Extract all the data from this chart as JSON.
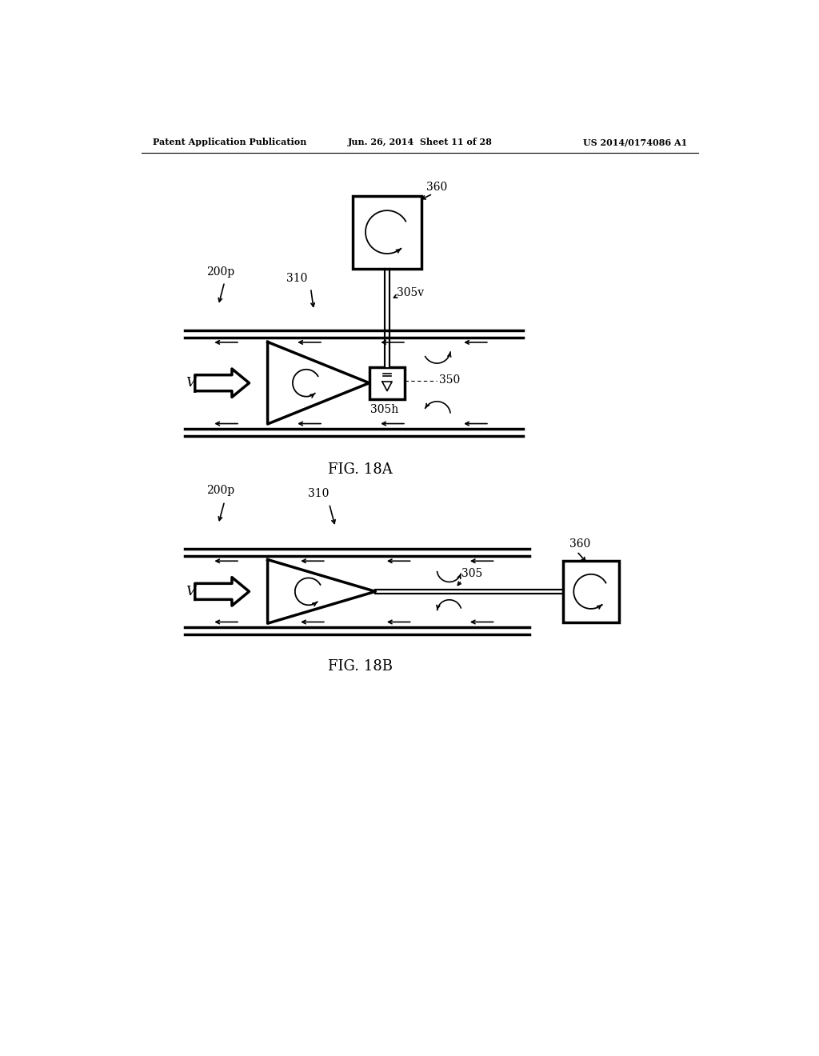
{
  "bg_color": "#ffffff",
  "line_color": "#000000",
  "header_left": "Patent Application Publication",
  "header_mid": "Jun. 26, 2014  Sheet 11 of 28",
  "header_right": "US 2014/0174086 A1",
  "fig_label_A": "FIG. 18A",
  "fig_label_B": "FIG. 18B",
  "label_200p_A": "200p",
  "label_310_A": "310",
  "label_360_A": "360",
  "label_305v": "305v",
  "label_305h": "305h",
  "label_350": "350",
  "label_200p_B": "200p",
  "label_310_B": "310",
  "label_360_B": "360",
  "label_305": "305",
  "label_V": "V"
}
